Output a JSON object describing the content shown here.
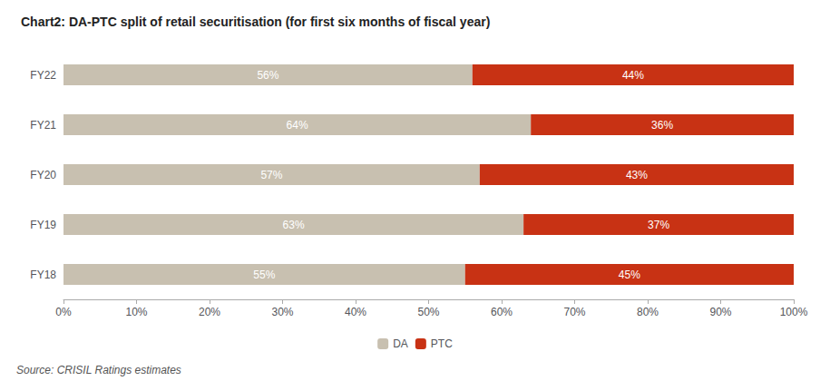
{
  "chart_data": {
    "type": "bar",
    "orientation": "horizontal",
    "stacked": true,
    "title": "Chart2: DA-PTC split of retail securitisation (for first six months of fiscal year)",
    "annotations": [
      "Source: CRISIL Ratings estimates"
    ],
    "categories": [
      "FY18",
      "FY19",
      "FY20",
      "FY21",
      "FY22"
    ],
    "series": [
      {
        "name": "DA",
        "color": "#C8C0B0",
        "values": [
          55,
          63,
          57,
          64,
          56
        ],
        "value_labels": [
          "55%",
          "63%",
          "57%",
          "64%",
          "56%"
        ]
      },
      {
        "name": "PTC",
        "color": "#C83214",
        "values": [
          45,
          37,
          43,
          36,
          44
        ],
        "value_labels": [
          "45%",
          "37%",
          "43%",
          "36%",
          "44%"
        ]
      }
    ],
    "data_labels": true,
    "xlim": [
      0,
      100
    ],
    "xticks": [
      {
        "value": 0,
        "label": "0%"
      },
      {
        "value": 10,
        "label": "10%"
      },
      {
        "value": 20,
        "label": "20%"
      },
      {
        "value": 30,
        "label": "30%"
      },
      {
        "value": 40,
        "label": "40%"
      },
      {
        "value": 50,
        "label": "50%"
      },
      {
        "value": 60,
        "label": "60%"
      },
      {
        "value": 70,
        "label": "70%"
      },
      {
        "value": 80,
        "label": "80%"
      },
      {
        "value": 90,
        "label": "90%"
      },
      {
        "value": 100,
        "label": "100%"
      }
    ],
    "grid": false,
    "legend": "bottom"
  }
}
